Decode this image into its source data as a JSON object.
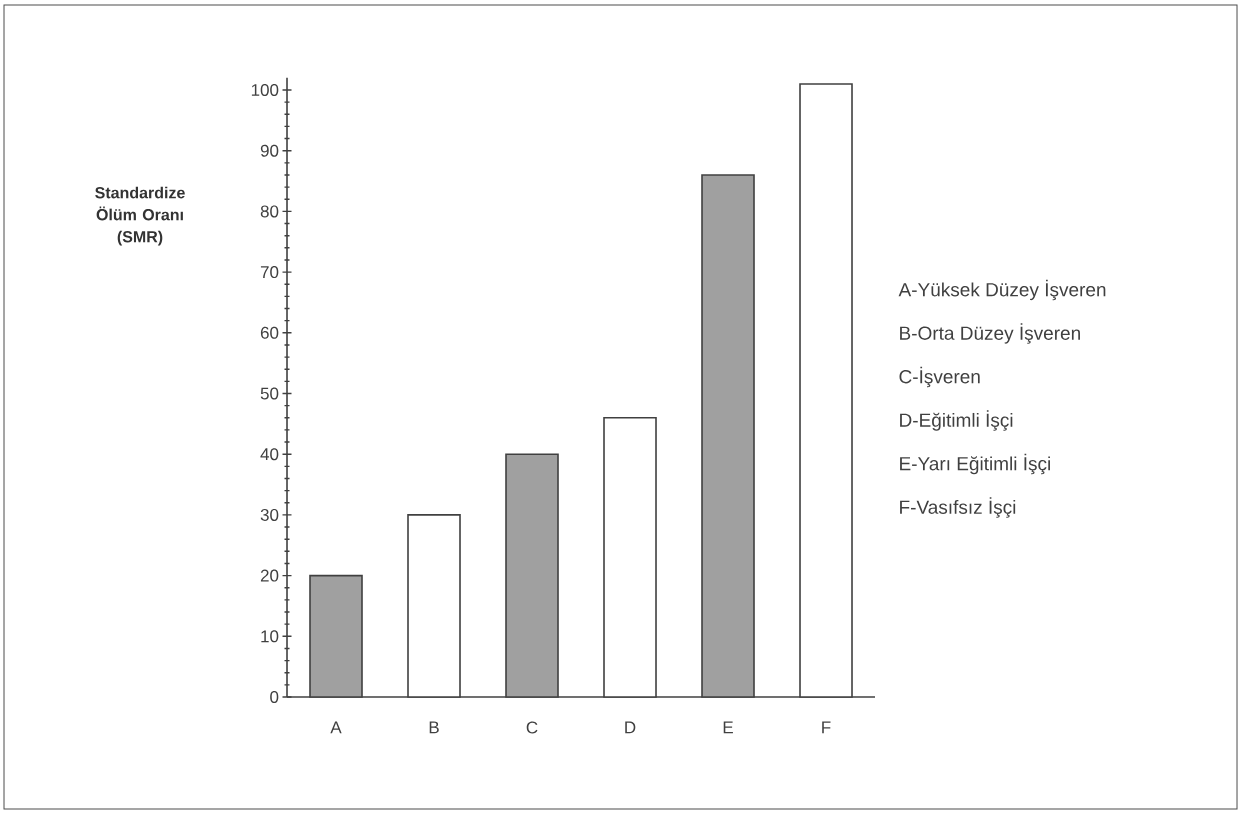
{
  "chart_data": {
    "type": "bar",
    "ylabel": "Standardize Ölüm Oranı (SMR)",
    "categories": [
      "A",
      "B",
      "C",
      "D",
      "E",
      "F"
    ],
    "values": [
      20,
      30,
      40,
      46,
      86,
      101
    ],
    "colors": [
      "#a0a0a0",
      "#ffffff",
      "#a0a0a0",
      "#ffffff",
      "#a0a0a0",
      "#ffffff"
    ],
    "ylim": [
      0,
      102
    ],
    "yticks": [
      0,
      10,
      20,
      30,
      40,
      50,
      60,
      70,
      80,
      90,
      100
    ],
    "annotations": [
      "A-Yüksek Düzey İşveren",
      "B-Orta Düzey İşveren",
      "C-İşveren",
      "D-Eğitimli İşçi",
      "E-Yarı Eğitimli İşçi",
      "F-Vasıfsız İşçi"
    ]
  }
}
